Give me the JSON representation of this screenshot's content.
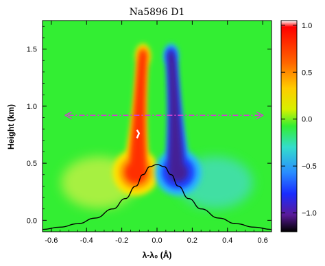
{
  "chart_data": {
    "type": "heatmap",
    "title": "Na5896  D1",
    "xlabel": "λ-λ₀ (Å)",
    "ylabel": "Height (km)",
    "xlim": [
      -0.65,
      0.65
    ],
    "ylim": [
      -0.1,
      1.75
    ],
    "xticks": [
      -0.6,
      -0.4,
      -0.2,
      0.0,
      0.2,
      0.4,
      0.6
    ],
    "xtick_labels": [
      "-0.6",
      "-0.4",
      "-0.2",
      "0.0",
      "0.2",
      "0.4",
      "0.6"
    ],
    "yticks": [
      0.0,
      0.5,
      1.0,
      1.5
    ],
    "ytick_labels": [
      "0.0",
      "0.5",
      "1.0",
      "1.5"
    ],
    "colorbar": {
      "min": -1.2,
      "max": 1.05,
      "ticks": [
        1.0,
        0.5,
        0.0,
        -0.5,
        -1.0
      ],
      "tick_labels": [
        "1.0",
        "0.5",
        "0.0",
        "−0.5",
        "−1.0"
      ],
      "colormap": "rainbow"
    },
    "field": {
      "description_keys": [
        "positive lobe left of line center",
        "negative lobe right of line center"
      ],
      "positive_lobe": {
        "center_x": -0.1,
        "peak_value": 1.0
      },
      "negative_lobe": {
        "center_x": 0.1,
        "peak_value": -1.1
      }
    },
    "line_profile": {
      "x": [
        -0.65,
        -0.55,
        -0.45,
        -0.35,
        -0.25,
        -0.18,
        -0.12,
        -0.08,
        -0.04,
        0.0,
        0.04,
        0.08,
        0.12,
        0.18,
        0.25,
        0.35,
        0.45,
        0.55,
        0.65
      ],
      "y": [
        -0.08,
        -0.06,
        -0.03,
        0.02,
        0.1,
        0.19,
        0.3,
        0.4,
        0.47,
        0.49,
        0.47,
        0.4,
        0.3,
        0.19,
        0.1,
        0.02,
        -0.03,
        -0.06,
        -0.08
      ],
      "color": "#000000"
    },
    "annotation_arrow": {
      "x_start": -0.52,
      "x_end": 0.6,
      "y": 0.92,
      "style": "dash-dot double arrow",
      "color": "#d040d0"
    },
    "white_marker": {
      "x": -0.11,
      "y": 0.75,
      "color": "#ffffff"
    }
  }
}
